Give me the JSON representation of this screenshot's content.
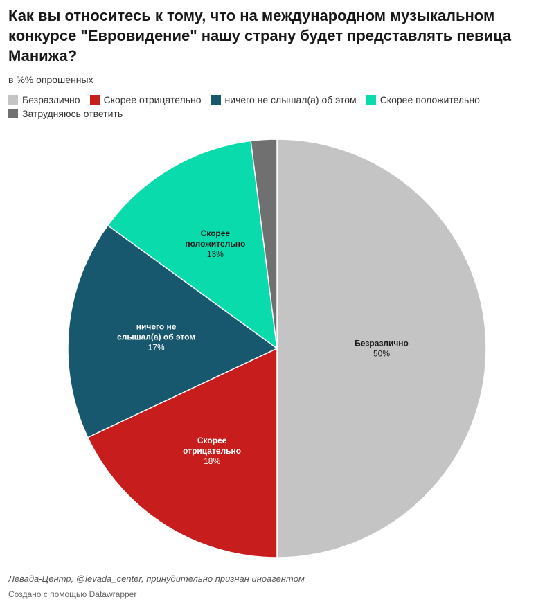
{
  "title": "Как вы относитесь к тому, что на международном музыкальном конкурсе \"Евровидение\" нашу страну будет представлять певица Манижа?",
  "subtitle": "в %% опрошенных",
  "source": "Левада-Центр, @levada_center, принудительно признан иноагентом",
  "credit": "Создано с помощью Datawrapper",
  "chart_data": {
    "type": "pie",
    "title": "Как вы относитесь к тому, что на международном музыкальном конкурсе \"Евровидение\" нашу страну будет представлять певица Манижа?",
    "subtitle": "в %% опрошенных",
    "unit": "%",
    "legend_position": "top",
    "start": "12 o'clock, clockwise",
    "categories": [
      "Безразлично",
      "Скорее отрицательно",
      "ничего не слышал(а) об этом",
      "Скорее положительно",
      "Затрудняюсь ответить"
    ],
    "values": [
      50,
      18,
      17,
      13,
      2
    ],
    "colors": [
      "#c4c4c4",
      "#c71e1d",
      "#18586f",
      "#09dbac",
      "#707070"
    ],
    "label_colors": [
      "#1a1a1a",
      "#ffffff",
      "#ffffff",
      "#1a1a1a",
      "#ffffff"
    ],
    "slice_labels": [
      {
        "lines": [
          "Безразлично"
        ],
        "value": "50%"
      },
      {
        "lines": [
          "Скорее",
          "отрицательно"
        ],
        "value": "18%"
      },
      {
        "lines": [
          "ничего не",
          "слышал(а) об этом"
        ],
        "value": "17%"
      },
      {
        "lines": [
          "Скорее",
          "положительно"
        ],
        "value": "13%"
      },
      {
        "lines": [],
        "value": ""
      }
    ]
  }
}
